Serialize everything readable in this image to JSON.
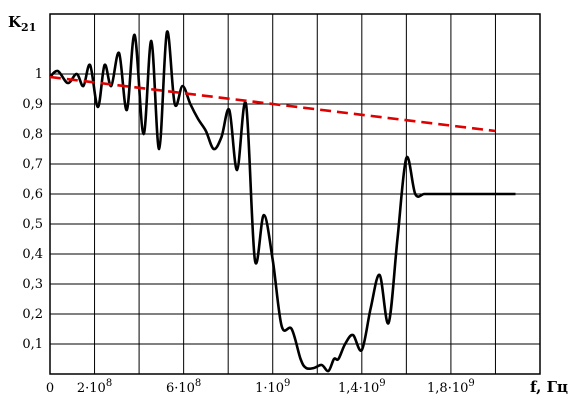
{
  "chart_data": {
    "type": "line",
    "title": "",
    "ylabel": "K",
    "ylabel_sub": "21",
    "xlabel": "f, Гц",
    "xlim": [
      0,
      2200000000
    ],
    "ylim": [
      0,
      1.2
    ],
    "grid": true,
    "x_tick_values": [
      0,
      200000000,
      400000000,
      600000000,
      800000000,
      1000000000,
      1200000000,
      1400000000,
      1600000000,
      1800000000,
      2000000000
    ],
    "x_tick_labels": [
      {
        "value": 0,
        "base": "0",
        "exp": ""
      },
      {
        "value": 200000000,
        "base": "2·10",
        "exp": "8"
      },
      {
        "value": 600000000,
        "base": "6·10",
        "exp": "8"
      },
      {
        "value": 1000000000,
        "base": "1·10",
        "exp": "9"
      },
      {
        "value": 1400000000,
        "base": "1,4·10",
        "exp": "9"
      },
      {
        "value": 1800000000,
        "base": "1,8·10",
        "exp": "9"
      }
    ],
    "y_ticks": [
      {
        "value": 0.1,
        "label": "0,1"
      },
      {
        "value": 0.2,
        "label": "0,2"
      },
      {
        "value": 0.3,
        "label": "0,3"
      },
      {
        "value": 0.4,
        "label": "0,4"
      },
      {
        "value": 0.5,
        "label": "0,5"
      },
      {
        "value": 0.6,
        "label": "0,6"
      },
      {
        "value": 0.7,
        "label": "0,7"
      },
      {
        "value": 0.8,
        "label": "0,8"
      },
      {
        "value": 0.9,
        "label": "0,9"
      },
      {
        "value": 1,
        "label": "1"
      }
    ],
    "series": [
      {
        "style": "solid",
        "color": "#000000",
        "x": [
          0,
          35000000,
          80000000,
          120000000,
          150000000,
          180000000,
          215000000,
          245000000,
          275000000,
          310000000,
          345000000,
          380000000,
          420000000,
          455000000,
          490000000,
          525000000,
          560000000,
          595000000,
          630000000,
          665000000,
          700000000,
          735000000,
          770000000,
          805000000,
          840000000,
          880000000,
          920000000,
          960000000,
          1000000000,
          1040000000,
          1085000000,
          1125000000,
          1150000000,
          1185000000,
          1220000000,
          1250000000,
          1275000000,
          1295000000,
          1325000000,
          1360000000,
          1400000000,
          1440000000,
          1480000000,
          1520000000,
          1560000000,
          1600000000,
          1640000000,
          1680000000,
          1720000000,
          1760000000,
          1795000000,
          1835000000,
          1870000000,
          1905000000,
          1940000000,
          1975000000,
          2000000000,
          2030000000,
          2060000000,
          2090000000
        ],
        "values": [
          0.99,
          1.01,
          0.97,
          1.0,
          0.96,
          1.03,
          0.89,
          1.03,
          0.96,
          1.07,
          0.88,
          1.13,
          0.8,
          1.11,
          0.75,
          1.14,
          0.9,
          0.96,
          0.9,
          0.85,
          0.81,
          0.75,
          0.79,
          0.88,
          0.68,
          0.9,
          0.38,
          0.53,
          0.38,
          0.16,
          0.15,
          0.05,
          0.02,
          0.02,
          0.03,
          0.01,
          0.05,
          0.05,
          0.1,
          0.13,
          0.08,
          0.22,
          0.33,
          0.17,
          0.45,
          0.72,
          0.6,
          0.6,
          0.6,
          0.6,
          0.6,
          0.6,
          0.6,
          0.6,
          0.6,
          0.6,
          0.6,
          0.6,
          0.6,
          0.6
        ]
      },
      {
        "style": "dashed",
        "color": "#e00000",
        "x": [
          0,
          2000000000
        ],
        "values": [
          0.99,
          0.81
        ]
      }
    ]
  }
}
